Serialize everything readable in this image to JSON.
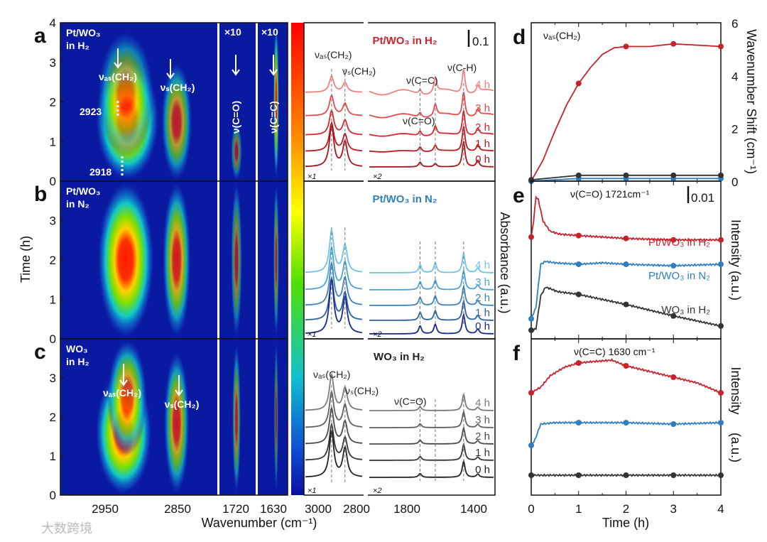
{
  "figure": {
    "panel_letters": [
      "a",
      "b",
      "c",
      "d",
      "e",
      "f"
    ],
    "heatmap_xlabel": "Wavenumber (cm⁻¹)",
    "heatmap_ylabel": "Time (h)",
    "heatmap_xticks": [
      "2950",
      "2850",
      "1720",
      "1630"
    ],
    "spectra_xticks": [
      "3000",
      "2800",
      "1800",
      "1400"
    ],
    "heatmap_yticks": [
      "0",
      "1",
      "2",
      "3",
      "4"
    ],
    "spectra_ylabel": "Absorbance (a.u.)",
    "watermark": "大数跨境"
  },
  "chart_data": [
    {
      "id": "heatmaps",
      "type": "heatmap",
      "xlabel": "Wavenumber (cm⁻¹)",
      "ylabel": "Time (h)",
      "ylim": [
        0,
        4
      ],
      "segments": [
        [
          3012,
          2797
        ],
        [
          1745,
          1695
        ],
        [
          1655,
          1615
        ]
      ],
      "segment_multipliers": [
        "",
        "×10",
        "×10"
      ],
      "colorbar": "jet",
      "panels": [
        {
          "letter": "a",
          "sample": "Pt/WO₃",
          "gas": "in H₂",
          "labels": {
            "as": "νₐₛ(CH₂)",
            "s": "νₛ(CH₂)",
            "co": "ν(C=O)",
            "cc": "ν(C=C)",
            "w1": "2923",
            "w2": "2918"
          },
          "blobs": [
            [
              2920,
              0.9,
              2.2,
              45,
              1.0
            ],
            [
              2922,
              2.2,
              1.6,
              40,
              0.6
            ],
            [
              2852,
              0.4,
              2.6,
              22,
              0.7
            ],
            [
              1720,
              0.2,
              1.3,
              8,
              0.5
            ],
            [
              1630,
              0.5,
              3.6,
              4,
              0.8
            ]
          ]
        },
        {
          "letter": "b",
          "sample": "Pt/WO₃",
          "gas": "in N₂",
          "blobs": [
            [
              2922,
              0.4,
              4.6,
              40,
              1.0
            ],
            [
              2852,
              0.5,
              4.5,
              20,
              0.8
            ],
            [
              1720,
              0.5,
              4.6,
              8,
              0.55
            ],
            [
              1630,
              0.5,
              4.6,
              4,
              0.55
            ]
          ]
        },
        {
          "letter": "c",
          "sample": "WO₃",
          "gas": "in H₂",
          "labels": {
            "as": "νₐₛ(CH₂)",
            "s": "νₛ(CH₂)"
          },
          "blobs": [
            [
              2925,
              0.4,
              2.8,
              40,
              1.0
            ],
            [
              2920,
              2.6,
              1.6,
              28,
              0.8
            ],
            [
              2852,
              0.5,
              3.2,
              18,
              0.75
            ],
            [
              1720,
              0.4,
              3.5,
              6,
              0.6
            ],
            [
              1630,
              0.5,
              3.5,
              3,
              0.45
            ]
          ]
        }
      ]
    },
    {
      "id": "spectra",
      "type": "line",
      "ylabel": "Absorbance (a.u.)",
      "segment_multipliers": [
        "×1",
        "×2"
      ],
      "time_labels": [
        "4 h",
        "3 h",
        "2 h",
        "1 h",
        "0 h"
      ],
      "panels": [
        {
          "title": "Pt/WO₃ in H₂",
          "scale_bar": "0.1",
          "color": "#c8232c",
          "trace_colors": [
            "#f08080",
            "#e84a4a",
            "#d8262c",
            "#c0161e",
            "#a8121a"
          ],
          "annotations": [
            "νₐₛ(CH₂)",
            "νₛ(CH₂)",
            "ν(C=C)",
            "ν(C-H)",
            "ν(C=O)"
          ],
          "peaks": [
            [
              2923,
              1.0
            ],
            [
              2853,
              0.6
            ],
            [
              1721,
              0.15
            ],
            [
              1630,
              0.35
            ],
            [
              1460,
              0.8
            ],
            [
              1375,
              0.2
            ]
          ]
        },
        {
          "title": "Pt/WO₃ in N₂",
          "color": "#2f7fc0",
          "trace_colors": [
            "#6fc3ea",
            "#4aa3d6",
            "#3b82bf",
            "#2b5fa6",
            "#1a2a8c"
          ],
          "peaks": [
            [
              2923,
              1.3
            ],
            [
              2853,
              0.85
            ],
            [
              1721,
              0.25
            ],
            [
              1630,
              0.3
            ],
            [
              1460,
              0.6
            ],
            [
              1375,
              0.15
            ]
          ]
        },
        {
          "title": "WO₃ in H₂",
          "color": "#222222",
          "trace_colors": [
            "#7a7a7a",
            "#606060",
            "#4a4a4a",
            "#363636",
            "#222222"
          ],
          "annotations": [
            "νₐₛ(CH₂)",
            "νₛ(CH₂)",
            "ν(C=O)"
          ],
          "peaks": [
            [
              2923,
              1.1
            ],
            [
              2853,
              0.7
            ],
            [
              1721,
              0.12
            ],
            [
              1460,
              0.5
            ],
            [
              1375,
              0.1
            ]
          ]
        }
      ]
    },
    {
      "id": "d",
      "type": "line",
      "title": "νₐₛ(CH₂)",
      "xlabel": "Time (h)",
      "ylabel": "Wavenumber Shift (cm⁻¹)",
      "xlim": [
        0,
        4
      ],
      "ylim": [
        0,
        6
      ],
      "xticks": [
        "0",
        "1",
        "2",
        "3",
        "4"
      ],
      "yticks": [
        "0",
        "2",
        "4",
        "6"
      ],
      "series": [
        {
          "name": "Pt/WO₃ in H₂",
          "color": "#c8232c",
          "x": [
            0,
            0.25,
            0.5,
            0.75,
            1,
            1.25,
            1.5,
            1.75,
            2,
            2.5,
            3,
            3.5,
            4
          ],
          "y": [
            0,
            0.8,
            1.9,
            2.9,
            3.7,
            4.3,
            4.8,
            5.05,
            5.1,
            5.1,
            5.2,
            5.15,
            5.1
          ]
        },
        {
          "name": "Pt/WO₃ in N₂",
          "color": "#2f7fc0",
          "x": [
            0,
            1,
            2,
            3,
            4
          ],
          "y": [
            0,
            0.1,
            0.1,
            0.1,
            0.1
          ]
        },
        {
          "name": "WO₃ in H₂",
          "color": "#333333",
          "x": [
            0,
            1,
            2,
            3,
            4
          ],
          "y": [
            0.05,
            0.22,
            0.22,
            0.22,
            0.22
          ]
        }
      ]
    },
    {
      "id": "e",
      "type": "line",
      "title": "ν(C=O) 1721cm⁻¹",
      "scale_bar": "0.01",
      "xlabel": "Time (h)",
      "ylabel": "Intensity (a.u.)",
      "xlim": [
        0,
        4
      ],
      "ylim": [
        0,
        1
      ],
      "series": [
        {
          "name": "Pt/WO₃ in H₂",
          "color": "#c8232c",
          "x": [
            0,
            0.05,
            0.1,
            0.15,
            0.25,
            0.4,
            0.6,
            1,
            1.5,
            2,
            3,
            4
          ],
          "y": [
            0.67,
            0.78,
            0.95,
            0.93,
            0.78,
            0.71,
            0.69,
            0.68,
            0.67,
            0.66,
            0.65,
            0.65
          ]
        },
        {
          "name": "Pt/WO₃ in N₂",
          "color": "#2f7fc0",
          "x": [
            0,
            0.1,
            0.2,
            0.3,
            0.5,
            1,
            1.5,
            2,
            3,
            4
          ],
          "y": [
            0.1,
            0.18,
            0.48,
            0.5,
            0.49,
            0.48,
            0.49,
            0.48,
            0.47,
            0.48
          ]
        },
        {
          "name": "WO₃ in H₂",
          "color": "#333333",
          "x": [
            0,
            0.1,
            0.2,
            0.3,
            0.4,
            0.55,
            1,
            2,
            3,
            4
          ],
          "y": [
            0.02,
            0.03,
            0.26,
            0.32,
            0.31,
            0.29,
            0.27,
            0.2,
            0.12,
            0.05
          ]
        }
      ]
    },
    {
      "id": "f",
      "type": "line",
      "title": "ν(C=C) 1630 cm⁻¹",
      "xlabel": "Time (h)",
      "ylabel": "Intensity",
      "ylabel2": "(a.u.)",
      "xlim": [
        0,
        4
      ],
      "ylim": [
        0,
        1
      ],
      "series": [
        {
          "name": "Pt/WO₃ in H₂",
          "color": "#c8232c",
          "x": [
            0,
            0.2,
            0.4,
            0.7,
            1,
            1.3,
            1.7,
            2,
            2.5,
            3,
            3.5,
            4
          ],
          "y": [
            0.68,
            0.72,
            0.8,
            0.86,
            0.89,
            0.9,
            0.91,
            0.87,
            0.83,
            0.79,
            0.75,
            0.68
          ]
        },
        {
          "name": "Pt/WO₃ in N₂",
          "color": "#2f7fc0",
          "x": [
            0,
            0.08,
            0.2,
            0.5,
            1,
            2,
            3,
            4
          ],
          "y": [
            0.31,
            0.35,
            0.46,
            0.47,
            0.47,
            0.47,
            0.46,
            0.47
          ]
        },
        {
          "name": "WO₃ in H₂",
          "color": "#333333",
          "x": [
            0,
            1,
            2,
            3,
            4
          ],
          "y": [
            0.1,
            0.1,
            0.1,
            0.1,
            0.1
          ]
        }
      ]
    }
  ]
}
